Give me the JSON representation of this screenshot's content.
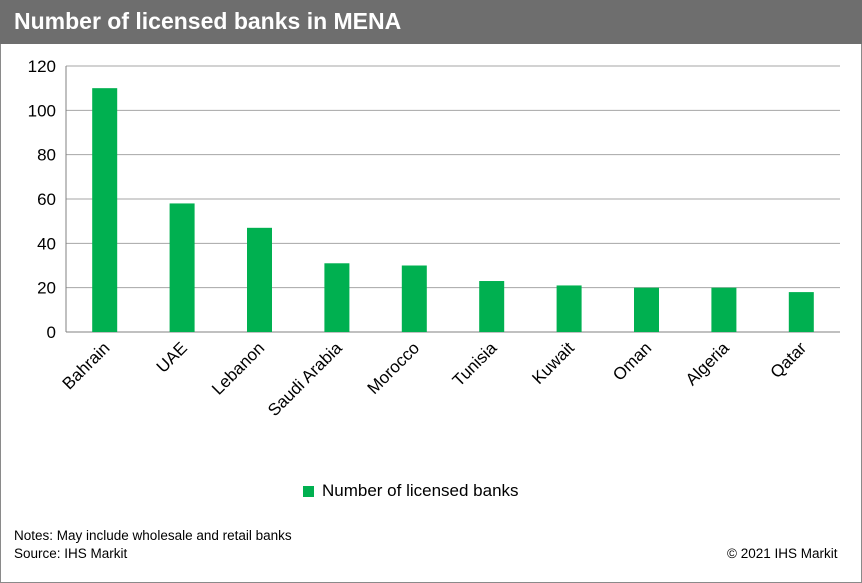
{
  "header": {
    "title": "Number of licensed banks in MENA"
  },
  "chart_data": {
    "type": "bar",
    "title": "Number of licensed banks in MENA",
    "categories": [
      "Bahrain",
      "UAE",
      "Lebanon",
      "Saudi Arabia",
      "Morocco",
      "Tunisia",
      "Kuwait",
      "Oman",
      "Algeria",
      "Qatar"
    ],
    "series": [
      {
        "name": "Number of licensed banks",
        "values": [
          110,
          58,
          47,
          31,
          30,
          23,
          21,
          20,
          20,
          18
        ],
        "color": "#00b050"
      }
    ],
    "y_ticks": [
      "0",
      "20",
      "40",
      "60",
      "80",
      "100",
      "120"
    ],
    "ylim": [
      0,
      120
    ],
    "grid": true,
    "legend_position": "bottom"
  },
  "footer": {
    "notes": "Notes: May include wholesale and retail banks",
    "source": "Source: IHS Markit",
    "copyright": "© 2021 IHS Markit"
  },
  "colors": {
    "title_bar": "#6e6e6e",
    "bar": "#00b050",
    "grid": "#a6a6a6"
  }
}
